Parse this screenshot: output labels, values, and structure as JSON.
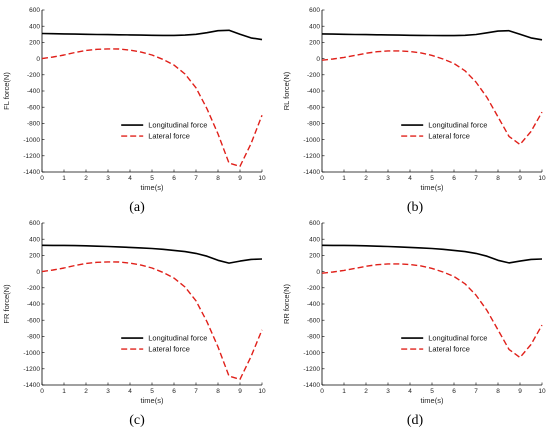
{
  "chart_data": [
    {
      "type": "line",
      "panel_label": "(a)",
      "xlabel": "time(s)",
      "ylabel": "FL force(N)",
      "xlim": [
        0,
        10
      ],
      "ylim": [
        -1400,
        600
      ],
      "xticks": [
        "0",
        "1",
        "2",
        "3",
        "4",
        "5",
        "6",
        "7",
        "8",
        "9",
        "10"
      ],
      "yticks": [
        "600",
        "400",
        "200",
        "0",
        "-200",
        "-400",
        "-600",
        "-800",
        "-1000",
        "-1200",
        "-1400"
      ],
      "x": [
        0,
        0.5,
        1,
        1.5,
        2,
        2.5,
        3,
        3.5,
        4,
        4.5,
        5,
        5.5,
        6,
        6.5,
        7,
        7.5,
        8,
        8.5,
        9,
        9.5,
        10
      ],
      "series": [
        {
          "name": "Longitudinal force",
          "color": "#000000",
          "dash": "solid",
          "values": [
            310,
            308,
            305,
            302,
            300,
            298,
            296,
            294,
            292,
            290,
            288,
            287,
            286,
            290,
            300,
            320,
            345,
            350,
            300,
            255,
            235
          ]
        },
        {
          "name": "Lateral force",
          "color": "#e0201a",
          "dash": "dashed",
          "values": [
            0,
            20,
            45,
            75,
            100,
            115,
            120,
            118,
            105,
            80,
            45,
            -10,
            -80,
            -190,
            -360,
            -620,
            -930,
            -1290,
            -1330,
            -1050,
            -700
          ]
        }
      ],
      "legend": "center-right"
    },
    {
      "type": "line",
      "panel_label": "(b)",
      "xlabel": "time(s)",
      "ylabel": "RL force(N)",
      "xlim": [
        0,
        10
      ],
      "ylim": [
        -1400,
        600
      ],
      "xticks": [
        "0",
        "1",
        "2",
        "3",
        "4",
        "5",
        "6",
        "7",
        "8",
        "9",
        "10"
      ],
      "yticks": [
        "600",
        "400",
        "200",
        "0",
        "-200",
        "-400",
        "-600",
        "-800",
        "-1000",
        "-1200",
        "-1400"
      ],
      "x": [
        0,
        0.5,
        1,
        1.5,
        2,
        2.5,
        3,
        3.5,
        4,
        4.5,
        5,
        5.5,
        6,
        6.5,
        7,
        7.5,
        8,
        8.5,
        9,
        9.5,
        10
      ],
      "series": [
        {
          "name": "Longitudinal force",
          "color": "#000000",
          "dash": "solid",
          "values": [
            305,
            303,
            300,
            298,
            296,
            294,
            292,
            290,
            288,
            286,
            285,
            284,
            284,
            288,
            298,
            318,
            340,
            345,
            300,
            255,
            232
          ]
        },
        {
          "name": "Lateral force",
          "color": "#e0201a",
          "dash": "dashed",
          "values": [
            -20,
            -5,
            15,
            40,
            65,
            85,
            95,
            95,
            88,
            70,
            40,
            -5,
            -60,
            -150,
            -290,
            -480,
            -720,
            -960,
            -1060,
            -900,
            -660
          ]
        }
      ],
      "legend": "center-right"
    },
    {
      "type": "line",
      "panel_label": "(c)",
      "xlabel": "time(s)",
      "ylabel": "FR force(N)",
      "xlim": [
        0,
        10
      ],
      "ylim": [
        -1400,
        600
      ],
      "xticks": [
        "0",
        "1",
        "2",
        "3",
        "4",
        "5",
        "6",
        "7",
        "8",
        "9",
        "10"
      ],
      "yticks": [
        "600",
        "400",
        "200",
        "0",
        "-200",
        "-400",
        "-600",
        "-800",
        "-1000",
        "-1200",
        "-1400"
      ],
      "x": [
        0,
        0.5,
        1,
        1.5,
        2,
        2.5,
        3,
        3.5,
        4,
        4.5,
        5,
        5.5,
        6,
        6.5,
        7,
        7.5,
        8,
        8.5,
        9,
        9.5,
        10
      ],
      "series": [
        {
          "name": "Longitudinal force",
          "color": "#000000",
          "dash": "solid",
          "values": [
            325,
            324,
            323,
            321,
            318,
            314,
            310,
            305,
            299,
            292,
            285,
            275,
            262,
            247,
            225,
            190,
            140,
            105,
            130,
            150,
            155
          ]
        },
        {
          "name": "Lateral force",
          "color": "#e0201a",
          "dash": "dashed",
          "values": [
            0,
            20,
            45,
            75,
            100,
            115,
            120,
            118,
            105,
            80,
            45,
            -10,
            -80,
            -190,
            -360,
            -620,
            -930,
            -1290,
            -1330,
            -1050,
            -720
          ]
        }
      ],
      "legend": "center-right"
    },
    {
      "type": "line",
      "panel_label": "(d)",
      "xlabel": "time(s)",
      "ylabel": "RR force(N)",
      "xlim": [
        0,
        10
      ],
      "ylim": [
        -1400,
        600
      ],
      "xticks": [
        "0",
        "1",
        "2",
        "3",
        "4",
        "5",
        "6",
        "7",
        "8",
        "9",
        "10"
      ],
      "yticks": [
        "600",
        "400",
        "200",
        "0",
        "-200",
        "-400",
        "-600",
        "-800",
        "-1000",
        "-1200",
        "-1400"
      ],
      "x": [
        0,
        0.5,
        1,
        1.5,
        2,
        2.5,
        3,
        3.5,
        4,
        4.5,
        5,
        5.5,
        6,
        6.5,
        7,
        7.5,
        8,
        8.5,
        9,
        9.5,
        10
      ],
      "series": [
        {
          "name": "Longitudinal force",
          "color": "#000000",
          "dash": "solid",
          "values": [
            325,
            324,
            323,
            321,
            318,
            314,
            310,
            305,
            299,
            292,
            285,
            275,
            262,
            247,
            225,
            190,
            140,
            108,
            130,
            150,
            155
          ]
        },
        {
          "name": "Lateral force",
          "color": "#e0201a",
          "dash": "dashed",
          "values": [
            -20,
            -5,
            15,
            40,
            65,
            85,
            95,
            95,
            88,
            70,
            40,
            -5,
            -60,
            -150,
            -290,
            -480,
            -720,
            -960,
            -1060,
            -900,
            -660
          ]
        }
      ],
      "legend": "center-right"
    }
  ]
}
